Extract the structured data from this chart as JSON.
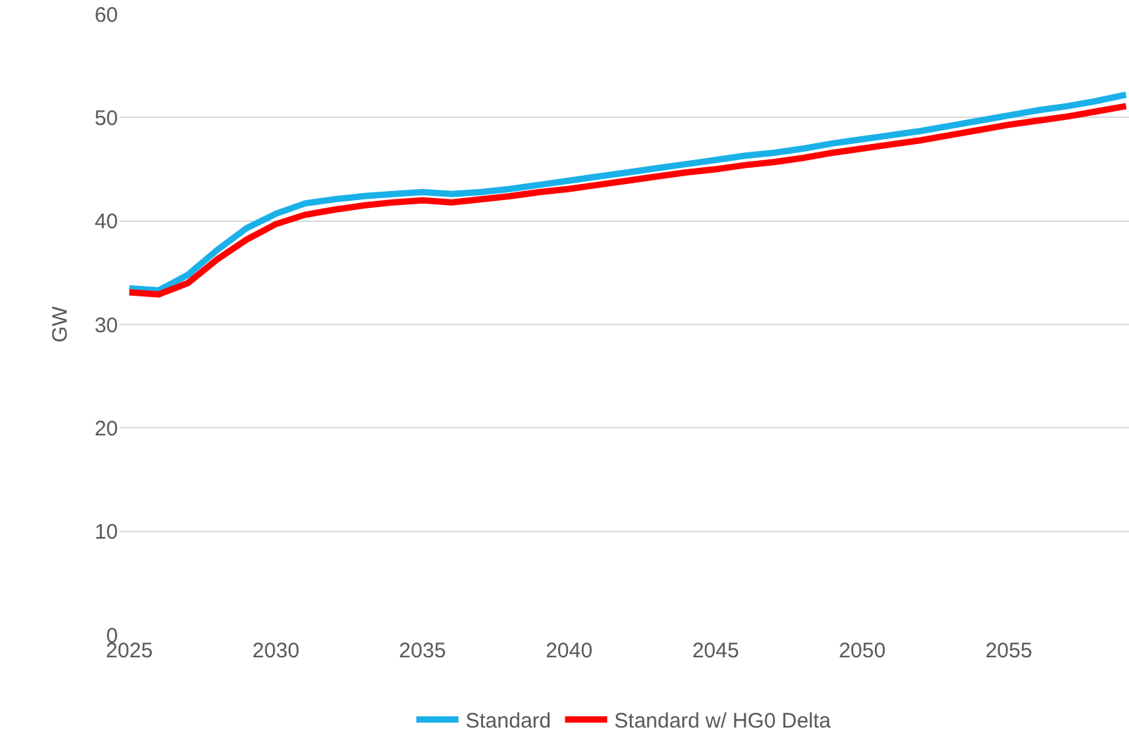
{
  "chart_data": {
    "type": "line",
    "ylabel": "GW",
    "x": [
      2025,
      2026,
      2027,
      2028,
      2029,
      2030,
      2031,
      2032,
      2033,
      2034,
      2035,
      2036,
      2037,
      2038,
      2039,
      2040,
      2041,
      2042,
      2043,
      2044,
      2045,
      2046,
      2047,
      2048,
      2049,
      2050,
      2051,
      2052,
      2053,
      2054,
      2055,
      2056,
      2057,
      2058,
      2059
    ],
    "series": [
      {
        "name": "Standard",
        "color": "#1ab0e8",
        "values": [
          33.5,
          33.3,
          34.8,
          37.2,
          39.3,
          40.7,
          41.7,
          42.1,
          42.4,
          42.6,
          42.8,
          42.6,
          42.8,
          43.1,
          43.5,
          43.9,
          44.3,
          44.7,
          45.1,
          45.5,
          45.9,
          46.3,
          46.6,
          47.0,
          47.5,
          47.9,
          48.3,
          48.7,
          49.2,
          49.7,
          50.2,
          50.7,
          51.1,
          51.6,
          52.2
        ]
      },
      {
        "name": "Standard w/ HG0 Delta",
        "color": "#ff0000",
        "values": [
          33.1,
          32.9,
          34.0,
          36.3,
          38.2,
          39.7,
          40.6,
          41.1,
          41.5,
          41.8,
          42.0,
          41.8,
          42.1,
          42.4,
          42.8,
          43.1,
          43.5,
          43.9,
          44.3,
          44.7,
          45.0,
          45.4,
          45.7,
          46.1,
          46.6,
          47.0,
          47.4,
          47.8,
          48.3,
          48.8,
          49.3,
          49.7,
          50.1,
          50.6,
          51.1
        ]
      }
    ],
    "xlim": [
      2024.66,
      2059.1
    ],
    "xticks": [
      2025,
      2030,
      2035,
      2040,
      2045,
      2050,
      2055
    ],
    "ylim": [
      0,
      60
    ],
    "yticks": [
      0,
      10,
      20,
      30,
      40,
      50,
      60
    ],
    "grid": "y",
    "legend": "bottom",
    "marker": "none",
    "line_style": "solid"
  }
}
